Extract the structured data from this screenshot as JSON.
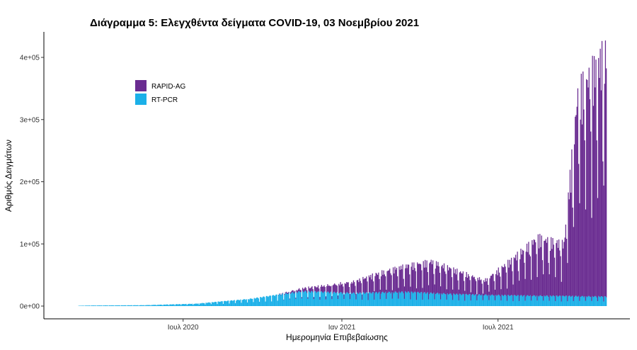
{
  "chart_data": {
    "type": "bar",
    "stacked": true,
    "title": "Διάγραμμα 5: Ελεγχθέντα δείγματα COVID-19, 03 Νοεμβρίου 2021",
    "xlabel": "Ημερομηνία Επιβεβαίωσης",
    "ylabel": "Αριθμός Δειγμάτων",
    "x_range": [
      "2020-03-01",
      "2021-11-03"
    ],
    "ylim": [
      0,
      420000
    ],
    "y_ticks": [
      0,
      100000,
      200000,
      300000,
      400000
    ],
    "y_tick_labels": [
      "0e+00",
      "1e+05",
      "2e+05",
      "3e+05",
      "4e+05"
    ],
    "x_ticks": [
      "2020-07-01",
      "2021-01-01",
      "2021-07-01"
    ],
    "x_tick_labels": [
      "Ιουλ 2020",
      "Ιαν 2021",
      "Ιουλ 2021"
    ],
    "grid": false,
    "legend_position": "top-left",
    "colors": {
      "RAPID-AG": "#6a2c91",
      "RT-PCR": "#1bb0e8"
    },
    "series": [
      {
        "name": "RAPID-AG",
        "x": [
          "2020-11-15",
          "2020-12-15",
          "2021-01-15",
          "2021-02-15",
          "2021-03-15",
          "2021-04-15",
          "2021-05-15",
          "2021-06-15",
          "2021-07-15",
          "2021-08-15",
          "2021-09-15",
          "2021-10-01",
          "2021-10-15",
          "2021-11-02"
        ],
        "values": [
          5000,
          12000,
          20000,
          35000,
          45000,
          55000,
          40000,
          25000,
          60000,
          100000,
          90000,
          350000,
          380000,
          420000
        ]
      },
      {
        "name": "RT-PCR",
        "x": [
          "2020-03-15",
          "2020-05-15",
          "2020-07-15",
          "2020-09-15",
          "2020-11-15",
          "2021-01-15",
          "2021-03-15",
          "2021-05-15",
          "2021-07-15",
          "2021-09-15",
          "2021-11-02"
        ],
        "values": [
          1000,
          1500,
          4000,
          12000,
          25000,
          22000,
          24000,
          20000,
          18000,
          17000,
          16000
        ]
      }
    ]
  }
}
